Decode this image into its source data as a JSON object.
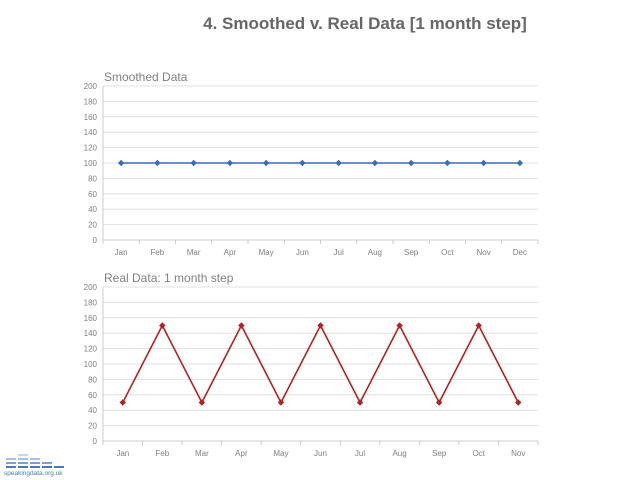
{
  "title": "4. Smoothed v. Real Data [1 month step]",
  "logo": {
    "text": "speakingdata.org.uk"
  },
  "chart_data": [
    {
      "type": "line",
      "title": "Smoothed Data",
      "categories": [
        "Jan",
        "Feb",
        "Mar",
        "Apr",
        "May",
        "Jun",
        "Jul",
        "Aug",
        "Sep",
        "Oct",
        "Nov",
        "Dec"
      ],
      "series": [
        {
          "values": [
            100,
            100,
            100,
            100,
            100,
            100,
            100,
            100,
            100,
            100,
            100,
            100
          ]
        }
      ],
      "ylim": [
        0,
        200
      ],
      "yticks": [
        0,
        20,
        40,
        60,
        80,
        100,
        120,
        140,
        160,
        180,
        200
      ],
      "grid": true,
      "color": "#3a6fb5",
      "marker": "diamond"
    },
    {
      "type": "line",
      "title": "Real Data: 1 month step",
      "categories": [
        "Jan",
        "Feb",
        "Mar",
        "Apr",
        "May",
        "Jun",
        "Jul",
        "Aug",
        "Sep",
        "Oct",
        "Nov"
      ],
      "series": [
        {
          "values": [
            50,
            150,
            50,
            150,
            50,
            150,
            50,
            150,
            50,
            150,
            50
          ]
        }
      ],
      "ylim": [
        0,
        200
      ],
      "yticks": [
        0,
        20,
        40,
        60,
        80,
        100,
        120,
        140,
        160,
        180,
        200
      ],
      "grid": true,
      "color": "#b22222",
      "marker": "diamond"
    }
  ]
}
